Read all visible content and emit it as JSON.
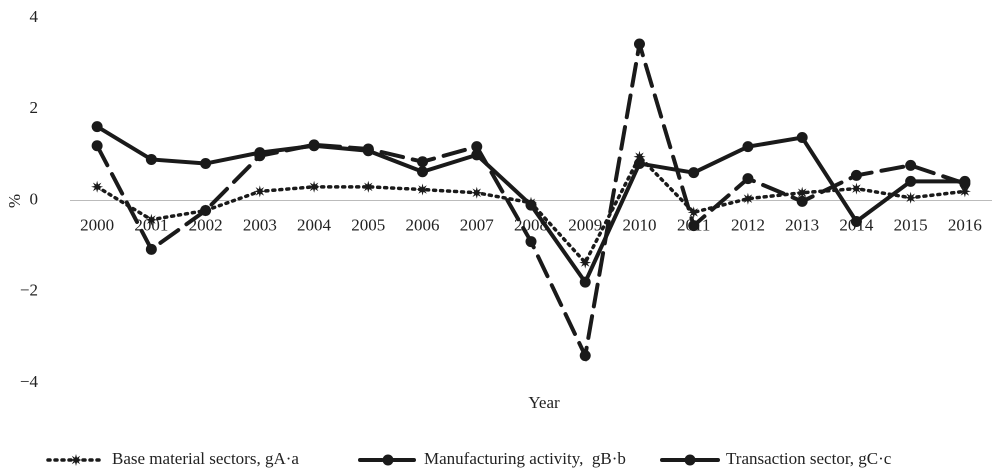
{
  "chart_data": {
    "type": "line",
    "x_label": "Year",
    "y_label": "%",
    "categories": [
      "2000",
      "2001",
      "2002",
      "2003",
      "2004",
      "2005",
      "2006",
      "2007",
      "2008",
      "2009",
      "2010",
      "2011",
      "2012",
      "2013",
      "2014",
      "2015",
      "2016"
    ],
    "series": [
      {
        "name": "Base material sectors, gA·a",
        "color": "#1a1a1a",
        "line_style": "dotted",
        "marker": "star",
        "values": [
          0.3,
          -0.42,
          -0.22,
          0.2,
          0.3,
          0.3,
          0.24,
          0.17,
          -0.05,
          -1.36,
          0.96,
          -0.26,
          0.04,
          0.17,
          0.26,
          0.06,
          0.2
        ]
      },
      {
        "name": "Manufacturing activity,  gB·b",
        "color": "#1a1a1a",
        "line_style": "dashed",
        "marker": "circle",
        "values": [
          1.2,
          -1.07,
          -0.22,
          0.98,
          1.22,
          1.13,
          0.85,
          1.18,
          -0.9,
          -3.4,
          3.43,
          -0.55,
          0.48,
          -0.02,
          0.55,
          0.77,
          0.37
        ]
      },
      {
        "name": "Transaction sector, gC·c",
        "color": "#1a1a1a",
        "line_style": "solid",
        "marker": "circle",
        "values": [
          1.62,
          0.9,
          0.81,
          1.05,
          1.2,
          1.09,
          0.63,
          1.0,
          -0.1,
          -1.79,
          0.81,
          0.61,
          1.18,
          1.38,
          -0.46,
          0.42,
          0.42
        ]
      }
    ],
    "ylim": [
      -4,
      4
    ],
    "yticks": [
      {
        "value": -4,
        "label": "−4"
      },
      {
        "value": -2,
        "label": "−2"
      },
      0,
      2,
      4
    ],
    "legend": "bottom"
  }
}
